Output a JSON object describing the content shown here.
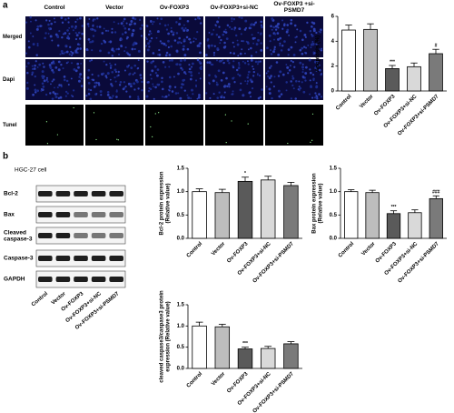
{
  "panel_a": {
    "label": "a",
    "columns": [
      "Control",
      "Vector",
      "Ov-FOXP3",
      "Ov-FOXP3+si-NC",
      "Ov-FOXP3 +si-PSMD7"
    ],
    "rows": [
      "Merged",
      "Dapi",
      "Tunel"
    ]
  },
  "panel_b": {
    "label": "b",
    "cell_line": "HGC-27 cell",
    "blots": [
      "Bcl-2",
      "Bax",
      "Cleaved caspase-3",
      "Caspase-3",
      "GAPDH"
    ],
    "lanes": [
      "Control",
      "Vector",
      "Ov-FOXP3",
      "Ov-FOXP3+si-NC",
      "Ov-FOXP3+si-PSMD7"
    ]
  },
  "chart_data": [
    {
      "type": "bar",
      "y_label": [
        "Apoptosis (%)"
      ],
      "categories": [
        "Control",
        "Vector",
        "Ov-FOXP3",
        "Ov-FOXP3+si-NC",
        "Ov-FOXP3+si-PSMD7"
      ],
      "values": [
        4.9,
        4.95,
        1.8,
        1.95,
        3.0
      ],
      "errors": [
        0.4,
        0.45,
        0.25,
        0.3,
        0.35
      ],
      "colors": [
        "#ffffff",
        "#bdbdbd",
        "#5a5a5a",
        "#d9d9d9",
        "#7a7a7a"
      ],
      "annotations": [
        null,
        null,
        "***",
        null,
        "#"
      ],
      "ylim": [
        0,
        6
      ],
      "yticks": [
        0,
        2,
        4,
        6
      ]
    },
    {
      "type": "bar",
      "y_label": [
        "Bcl-2 protein expression",
        "(Relative value)"
      ],
      "categories": [
        "Control",
        "Vector",
        "Ov-FOXP3",
        "Ov-FOXP3+si-NC",
        "Ov-FOXP3+si-PSMD7"
      ],
      "values": [
        1.0,
        0.98,
        1.22,
        1.25,
        1.13
      ],
      "errors": [
        0.06,
        0.07,
        0.09,
        0.08,
        0.07
      ],
      "colors": [
        "#ffffff",
        "#bdbdbd",
        "#5a5a5a",
        "#d9d9d9",
        "#7a7a7a"
      ],
      "annotations": [
        null,
        null,
        "*",
        null,
        null
      ],
      "ylim": [
        0,
        1.5
      ],
      "yticks": [
        {
          "value": 0,
          "label": "0.0"
        },
        0.5,
        {
          "value": 1,
          "label": "1.0"
        },
        1.5
      ]
    },
    {
      "type": "bar",
      "y_label": [
        "Bax protein expression",
        "(Relative value)"
      ],
      "categories": [
        "Control",
        "Vector",
        "Ov-FOXP3",
        "Ov-FOXP3+si-NC",
        "Ov-FOXP3+si-PSMD7"
      ],
      "values": [
        1.0,
        0.98,
        0.53,
        0.55,
        0.85
      ],
      "errors": [
        0.04,
        0.05,
        0.06,
        0.06,
        0.06
      ],
      "colors": [
        "#ffffff",
        "#bdbdbd",
        "#5a5a5a",
        "#d9d9d9",
        "#7a7a7a"
      ],
      "annotations": [
        null,
        null,
        "***",
        null,
        "###"
      ],
      "ylim": [
        0,
        1.5
      ],
      "yticks": [
        {
          "value": 0,
          "label": "0.0"
        },
        0.5,
        {
          "value": 1,
          "label": "1.0"
        },
        1.5
      ]
    },
    {
      "type": "bar",
      "y_label": [
        "cleaved caspase3/caspase3 protein",
        "expression (Relative value)"
      ],
      "categories": [
        "Control",
        "Vector",
        "Ov-FOXP3",
        "Ov-FOXP3+si-NC",
        "Ov-FOXP3+si-PSMD7"
      ],
      "values": [
        1.0,
        0.98,
        0.46,
        0.47,
        0.58
      ],
      "errors": [
        0.09,
        0.06,
        0.04,
        0.05,
        0.05
      ],
      "colors": [
        "#ffffff",
        "#bdbdbd",
        "#5a5a5a",
        "#d9d9d9",
        "#7a7a7a"
      ],
      "annotations": [
        null,
        null,
        "***",
        null,
        null
      ],
      "ylim": [
        0,
        1.5
      ],
      "yticks": [
        {
          "value": 0,
          "label": "0.0"
        },
        0.5,
        {
          "value": 1,
          "label": "1.0"
        },
        1.5
      ]
    }
  ]
}
